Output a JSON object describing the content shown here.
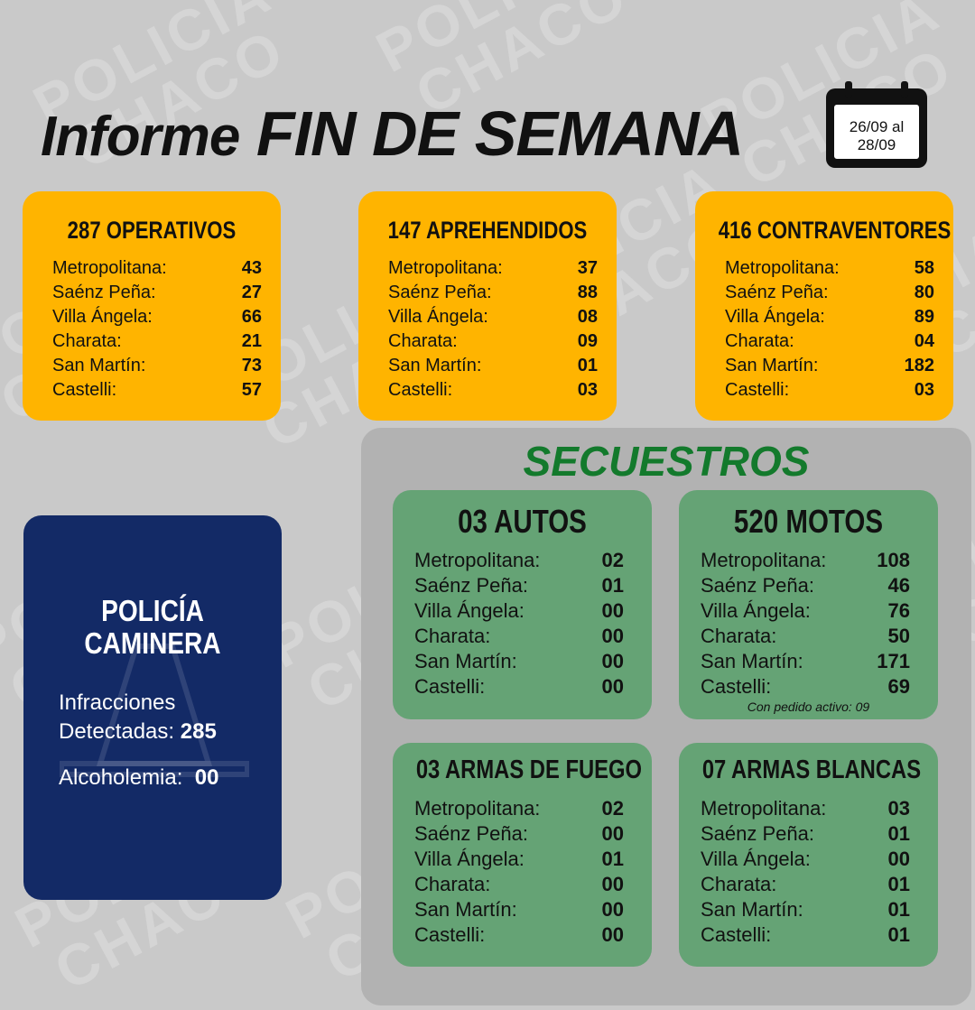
{
  "header": {
    "title_a": "Informe",
    "title_b": "FIN DE SEMANA",
    "date_line1": "26/09 al",
    "date_line2": "28/09"
  },
  "watermark": [
    "POLICIA",
    "CHACO"
  ],
  "top_cards": [
    {
      "title": "287 OPERATIVOS",
      "rows": [
        [
          "Metropolitana:",
          "43"
        ],
        [
          "Saénz Peña:",
          "27"
        ],
        [
          "Villa Ángela:",
          "66"
        ],
        [
          "Charata:",
          "21"
        ],
        [
          "San Martín:",
          "73"
        ],
        [
          "Castelli:",
          "57"
        ]
      ]
    },
    {
      "title": "147 APREHENDIDOS",
      "rows": [
        [
          "Metropolitana:",
          "37"
        ],
        [
          "Saénz Peña:",
          "88"
        ],
        [
          "Villa Ángela:",
          "08"
        ],
        [
          "Charata:",
          "09"
        ],
        [
          "San Martín:",
          "01"
        ],
        [
          "Castelli:",
          "03"
        ]
      ]
    },
    {
      "title": "416 CONTRAVENTORES",
      "rows": [
        [
          "Metropolitana:",
          "58"
        ],
        [
          "Saénz Peña:",
          "80"
        ],
        [
          "Villa Ángela:",
          "89"
        ],
        [
          "Charata:",
          "04"
        ],
        [
          "San Martín:",
          "182"
        ],
        [
          "Castelli:",
          "03"
        ]
      ]
    }
  ],
  "caminera": {
    "title_line1": "POLICÍA",
    "title_line2": "CAMINERA",
    "infracciones_line1": "Infracciones",
    "infracciones_line2": "Detectadas:",
    "infracciones_value": "285",
    "alcoholemia_label": "Alcoholemia:",
    "alcoholemia_value": "00"
  },
  "secuestros": {
    "title": "SECUESTROS",
    "cards": [
      {
        "title": "03 AUTOS",
        "rows": [
          [
            "Metropolitana:",
            "02"
          ],
          [
            "Saénz Peña:",
            "01"
          ],
          [
            "Villa Ángela:",
            "00"
          ],
          [
            "Charata:",
            "00"
          ],
          [
            "San Martín:",
            "00"
          ],
          [
            "Castelli:",
            "00"
          ]
        ]
      },
      {
        "title": "520 MOTOS",
        "rows": [
          [
            "Metropolitana:",
            "108"
          ],
          [
            "Saénz Peña:",
            "46"
          ],
          [
            "Villa Ángela:",
            "76"
          ],
          [
            "Charata:",
            "50"
          ],
          [
            "San Martín:",
            "171"
          ],
          [
            "Castelli:",
            "69"
          ]
        ],
        "note": "Con pedido activo: 09"
      },
      {
        "title": "03 ARMAS DE FUEGO",
        "rows": [
          [
            "Metropolitana:",
            "02"
          ],
          [
            "Saénz Peña:",
            "00"
          ],
          [
            "Villa Ángela:",
            "01"
          ],
          [
            "Charata:",
            "00"
          ],
          [
            "San Martín:",
            "00"
          ],
          [
            "Castelli:",
            "00"
          ]
        ]
      },
      {
        "title": "07 ARMAS BLANCAS",
        "rows": [
          [
            "Metropolitana:",
            "03"
          ],
          [
            "Saénz Peña:",
            "01"
          ],
          [
            "Villa Ángela:",
            "00"
          ],
          [
            "Charata:",
            "01"
          ],
          [
            "San Martín:",
            "01"
          ],
          [
            "Castelli:",
            "01"
          ]
        ]
      }
    ]
  }
}
